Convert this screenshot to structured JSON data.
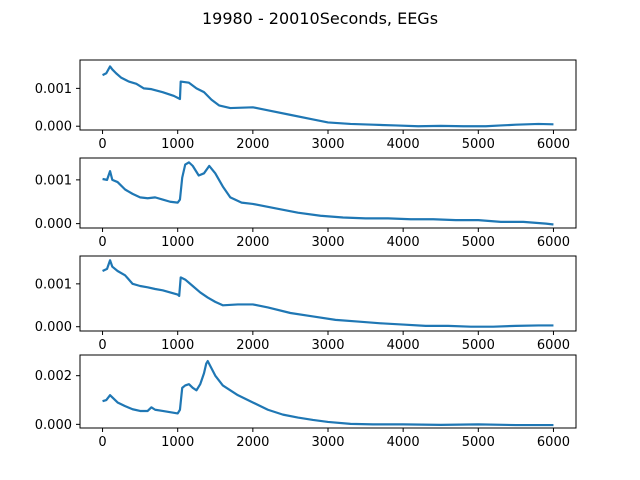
{
  "figure": {
    "title": "19980 - 20010Seconds, EEGs"
  },
  "colors": {
    "line": "#1f77b4",
    "axes": "#000000",
    "background": "#ffffff"
  },
  "chart_data": [
    {
      "type": "line",
      "xlim": [
        -300,
        6300
      ],
      "ylim": [
        -0.0001,
        0.00175
      ],
      "xticks": [
        0,
        1000,
        2000,
        3000,
        4000,
        5000,
        6000
      ],
      "xtick_labels": [
        "0",
        "1000",
        "2000",
        "3000",
        "4000",
        "5000",
        "6000"
      ],
      "yticks": [
        0.0,
        0.001
      ],
      "ytick_labels": [
        "0.000",
        "0.001"
      ],
      "series": [
        {
          "x": [
            0,
            50,
            100,
            130,
            180,
            250,
            350,
            450,
            550,
            650,
            800,
            950,
            1030,
            1040,
            1150,
            1250,
            1350,
            1450,
            1550,
            1700,
            2000,
            2200,
            2500,
            2800,
            3000,
            3300,
            3600,
            3900,
            4200,
            4500,
            4800,
            5100,
            5300,
            5500,
            5800,
            6000
          ],
          "y": [
            0.00135,
            0.0014,
            0.00158,
            0.0015,
            0.0014,
            0.00128,
            0.00118,
            0.00112,
            0.001,
            0.00098,
            0.0009,
            0.0008,
            0.00072,
            0.00118,
            0.00115,
            0.001,
            0.0009,
            0.0007,
            0.00055,
            0.00048,
            0.0005,
            0.00042,
            0.0003,
            0.00018,
            0.0001,
            6e-05,
            4e-05,
            2e-05,
            0.0,
            1e-05,
            0.0,
            0.0,
            2e-05,
            4e-05,
            6e-05,
            5e-05
          ]
        }
      ]
    },
    {
      "type": "line",
      "xlim": [
        -300,
        6300
      ],
      "ylim": [
        -0.0001,
        0.0015
      ],
      "xticks": [
        0,
        1000,
        2000,
        3000,
        4000,
        5000,
        6000
      ],
      "xtick_labels": [
        "0",
        "1000",
        "2000",
        "3000",
        "4000",
        "5000",
        "6000"
      ],
      "yticks": [
        0.0,
        0.001
      ],
      "ytick_labels": [
        "0.000",
        "0.001"
      ],
      "series": [
        {
          "x": [
            0,
            60,
            100,
            130,
            200,
            300,
            400,
            500,
            600,
            700,
            800,
            900,
            1000,
            1030,
            1060,
            1100,
            1150,
            1200,
            1280,
            1350,
            1420,
            1500,
            1600,
            1700,
            1850,
            2000,
            2300,
            2600,
            2900,
            3200,
            3500,
            3800,
            4100,
            4400,
            4700,
            5000,
            5300,
            5600,
            5900,
            6000
          ],
          "y": [
            0.00102,
            0.001,
            0.0012,
            0.001,
            0.00095,
            0.00078,
            0.00068,
            0.0006,
            0.00058,
            0.0006,
            0.00055,
            0.0005,
            0.00048,
            0.00055,
            0.00105,
            0.00135,
            0.0014,
            0.00132,
            0.0011,
            0.00115,
            0.00132,
            0.00115,
            0.00085,
            0.0006,
            0.00048,
            0.00045,
            0.00035,
            0.00025,
            0.00018,
            0.00014,
            0.00012,
            0.00012,
            0.0001,
            0.0001,
            8e-05,
            8e-05,
            4e-05,
            4e-05,
            0.0,
            -2e-05
          ]
        }
      ]
    },
    {
      "type": "line",
      "xlim": [
        -300,
        6300
      ],
      "ylim": [
        -0.0001,
        0.00165
      ],
      "xticks": [
        0,
        1000,
        2000,
        3000,
        4000,
        5000,
        6000
      ],
      "xtick_labels": [
        "0",
        "1000",
        "2000",
        "3000",
        "4000",
        "5000",
        "6000"
      ],
      "yticks": [
        0.0,
        0.001
      ],
      "ytick_labels": [
        "0.000",
        "0.001"
      ],
      "series": [
        {
          "x": [
            0,
            60,
            100,
            130,
            200,
            300,
            400,
            500,
            600,
            700,
            800,
            900,
            1000,
            1020,
            1040,
            1100,
            1200,
            1300,
            1400,
            1500,
            1600,
            1800,
            2000,
            2200,
            2500,
            2800,
            3100,
            3400,
            3700,
            4000,
            4300,
            4600,
            4900,
            5200,
            5500,
            5800,
            6000
          ],
          "y": [
            0.0013,
            0.00135,
            0.00155,
            0.0014,
            0.0013,
            0.0012,
            0.001,
            0.00095,
            0.00092,
            0.00088,
            0.00085,
            0.0008,
            0.00075,
            0.00072,
            0.00115,
            0.0011,
            0.00095,
            0.0008,
            0.00068,
            0.00058,
            0.0005,
            0.00052,
            0.00052,
            0.00045,
            0.00032,
            0.00024,
            0.00016,
            0.00012,
            8e-05,
            5e-05,
            2e-05,
            2e-05,
            0.0,
            0.0,
            2e-05,
            3e-05,
            3e-05
          ]
        }
      ]
    },
    {
      "type": "line",
      "xlim": [
        -300,
        6300
      ],
      "ylim": [
        -0.00015,
        0.00285
      ],
      "xticks": [
        0,
        1000,
        2000,
        3000,
        4000,
        5000,
        6000
      ],
      "xtick_labels": [
        "0",
        "1000",
        "2000",
        "3000",
        "4000",
        "5000",
        "6000"
      ],
      "yticks": [
        0.0,
        0.002
      ],
      "ytick_labels": [
        "0.000",
        "0.002"
      ],
      "series": [
        {
          "x": [
            0,
            50,
            100,
            150,
            200,
            300,
            400,
            500,
            600,
            650,
            700,
            800,
            900,
            1000,
            1030,
            1060,
            1100,
            1150,
            1200,
            1250,
            1300,
            1350,
            1380,
            1400,
            1450,
            1500,
            1600,
            1700,
            1800,
            2000,
            2200,
            2400,
            2600,
            2800,
            3000,
            3300,
            3600,
            4000,
            4500,
            5000,
            5500,
            6000
          ],
          "y": [
            0.00095,
            0.001,
            0.0012,
            0.00105,
            0.0009,
            0.00075,
            0.00062,
            0.00055,
            0.00055,
            0.0007,
            0.0006,
            0.00055,
            0.0005,
            0.00045,
            0.0006,
            0.0015,
            0.0016,
            0.00165,
            0.0015,
            0.0014,
            0.00165,
            0.0021,
            0.0025,
            0.0026,
            0.0023,
            0.002,
            0.0016,
            0.0014,
            0.0012,
            0.0009,
            0.0006,
            0.0004,
            0.00028,
            0.00018,
            0.0001,
            2e-05,
            0.0,
            0.0,
            -2e-05,
            0.0,
            -3e-05,
            -3e-05
          ]
        }
      ]
    }
  ]
}
